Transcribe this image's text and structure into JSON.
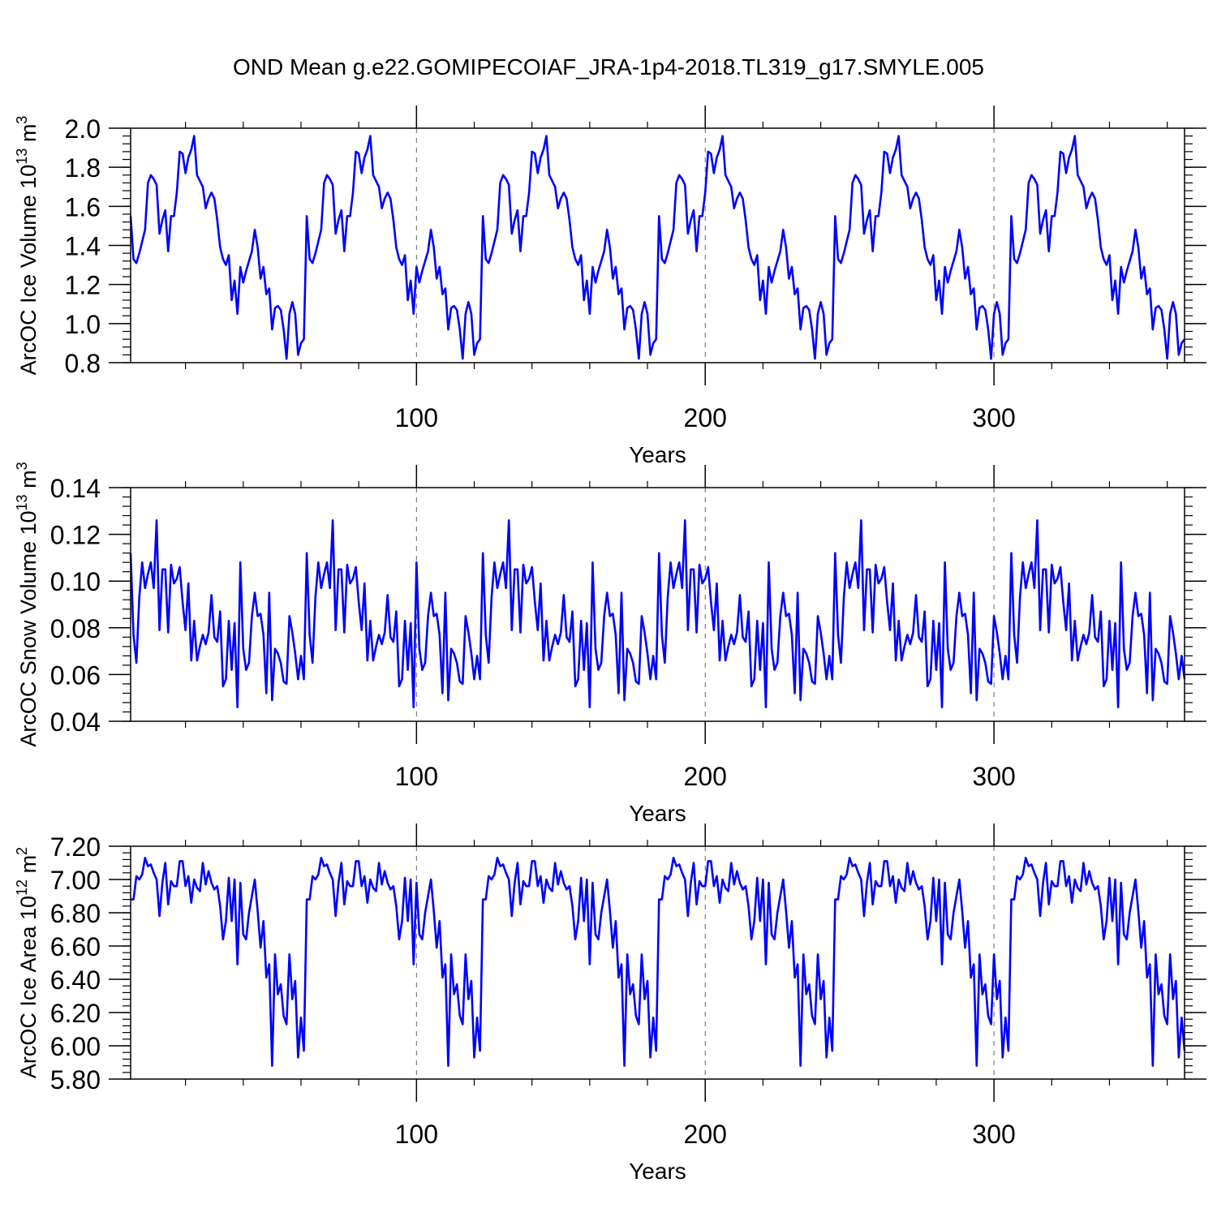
{
  "title": "OND Mean g.e22.GOMIPECOIAF_JRA-1p4-2018.TL319_g17.SMYLE.005",
  "line_color": "#0000ff",
  "chart_data": [
    {
      "type": "line",
      "ylabel": "ArcOC Ice Volume",
      "yunit_base": "10",
      "yunit_exp": "13",
      "yunit_suffix": "m",
      "yunit_suffix_exp": "3",
      "xlabel": "Years",
      "xlim": [
        1,
        366
      ],
      "ylim": [
        0.8,
        2.0
      ],
      "x_ticks": [
        100,
        200,
        300
      ],
      "y_ticks": [
        0.8,
        1.0,
        1.2,
        1.4,
        1.6,
        1.8,
        2.0
      ],
      "y_tick_labels": [
        "0.8",
        "1.0",
        "1.2",
        "1.4",
        "1.6",
        "1.8",
        "2.0"
      ],
      "x_minor_step": 20,
      "y_minor_step": 0.04,
      "grid": "dashed vertical at major x ticks",
      "series": [
        {
          "name": "ArcOC Ice Volume",
          "period": 61,
          "pattern": [
            1.55,
            1.33,
            1.31,
            1.36,
            1.42,
            1.48,
            1.72,
            1.76,
            1.74,
            1.71,
            1.46,
            1.53,
            1.58,
            1.37,
            1.55,
            1.55,
            1.67,
            1.88,
            1.87,
            1.77,
            1.85,
            1.89,
            1.96,
            1.76,
            1.73,
            1.7,
            1.59,
            1.64,
            1.67,
            1.64,
            1.53,
            1.39,
            1.33,
            1.3,
            1.35,
            1.12,
            1.22,
            1.05,
            1.29,
            1.21,
            1.27,
            1.32,
            1.37,
            1.48,
            1.39,
            1.23,
            1.29,
            1.15,
            1.18,
            0.97,
            1.08,
            1.09,
            1.07,
            0.97,
            0.82,
            1.05,
            1.11,
            1.05,
            0.84,
            0.9,
            0.92
          ]
        }
      ]
    },
    {
      "type": "line",
      "ylabel": "ArcOC Snow Volume",
      "yunit_base": "10",
      "yunit_exp": "13",
      "yunit_suffix": "m",
      "yunit_suffix_exp": "3",
      "xlabel": "Years",
      "xlim": [
        1,
        366
      ],
      "ylim": [
        0.04,
        0.14
      ],
      "x_ticks": [
        100,
        200,
        300
      ],
      "y_ticks": [
        0.04,
        0.06,
        0.08,
        0.1,
        0.12,
        0.14
      ],
      "y_tick_labels": [
        "0.04",
        "0.06",
        "0.08",
        "0.10",
        "0.12",
        "0.14"
      ],
      "x_minor_step": 20,
      "y_minor_step": 0.004,
      "grid": "dashed vertical at major x ticks",
      "series": [
        {
          "name": "ArcOC Snow Volume",
          "period": 61,
          "pattern": [
            0.112,
            0.077,
            0.065,
            0.093,
            0.108,
            0.097,
            0.103,
            0.108,
            0.097,
            0.126,
            0.079,
            0.105,
            0.105,
            0.078,
            0.107,
            0.099,
            0.101,
            0.106,
            0.091,
            0.079,
            0.099,
            0.066,
            0.083,
            0.066,
            0.072,
            0.077,
            0.073,
            0.078,
            0.094,
            0.076,
            0.074,
            0.087,
            0.055,
            0.058,
            0.083,
            0.062,
            0.082,
            0.046,
            0.108,
            0.071,
            0.062,
            0.065,
            0.085,
            0.095,
            0.085,
            0.086,
            0.077,
            0.052,
            0.095,
            0.049,
            0.071,
            0.069,
            0.065,
            0.057,
            0.056,
            0.085,
            0.078,
            0.069,
            0.058,
            0.068,
            0.058
          ]
        }
      ]
    },
    {
      "type": "line",
      "ylabel": "ArcOC Ice Area",
      "yunit_base": "10",
      "yunit_exp": "12",
      "yunit_suffix": "m",
      "yunit_suffix_exp": "2",
      "xlabel": "Years",
      "xlim": [
        1,
        366
      ],
      "ylim": [
        5.8,
        7.2
      ],
      "x_ticks": [
        100,
        200,
        300
      ],
      "y_ticks": [
        5.8,
        6.0,
        6.2,
        6.4,
        6.6,
        6.8,
        7.0,
        7.2
      ],
      "y_tick_labels": [
        "5.80",
        "6.00",
        "6.20",
        "6.40",
        "6.60",
        "6.80",
        "7.00",
        "7.20"
      ],
      "x_minor_step": 20,
      "y_minor_step": 0.04,
      "grid": "dashed vertical at major x ticks",
      "series": [
        {
          "name": "ArcOC Ice Area",
          "period": 61,
          "pattern": [
            6.88,
            6.88,
            7.02,
            7.0,
            7.03,
            7.13,
            7.08,
            7.09,
            7.04,
            7.0,
            6.78,
            6.98,
            7.1,
            6.85,
            6.99,
            6.96,
            6.96,
            7.11,
            7.11,
            6.96,
            7.02,
            6.86,
            7.0,
            6.95,
            6.93,
            7.1,
            6.97,
            7.05,
            6.98,
            6.94,
            6.96,
            6.84,
            6.64,
            6.75,
            7.01,
            6.75,
            7.0,
            6.49,
            6.98,
            6.67,
            6.64,
            6.8,
            6.9,
            7.0,
            6.81,
            6.59,
            6.75,
            6.41,
            6.49,
            5.88,
            6.55,
            6.31,
            6.37,
            6.18,
            6.13,
            6.55,
            6.28,
            6.39,
            5.93,
            6.17,
            5.97
          ]
        }
      ]
    }
  ]
}
